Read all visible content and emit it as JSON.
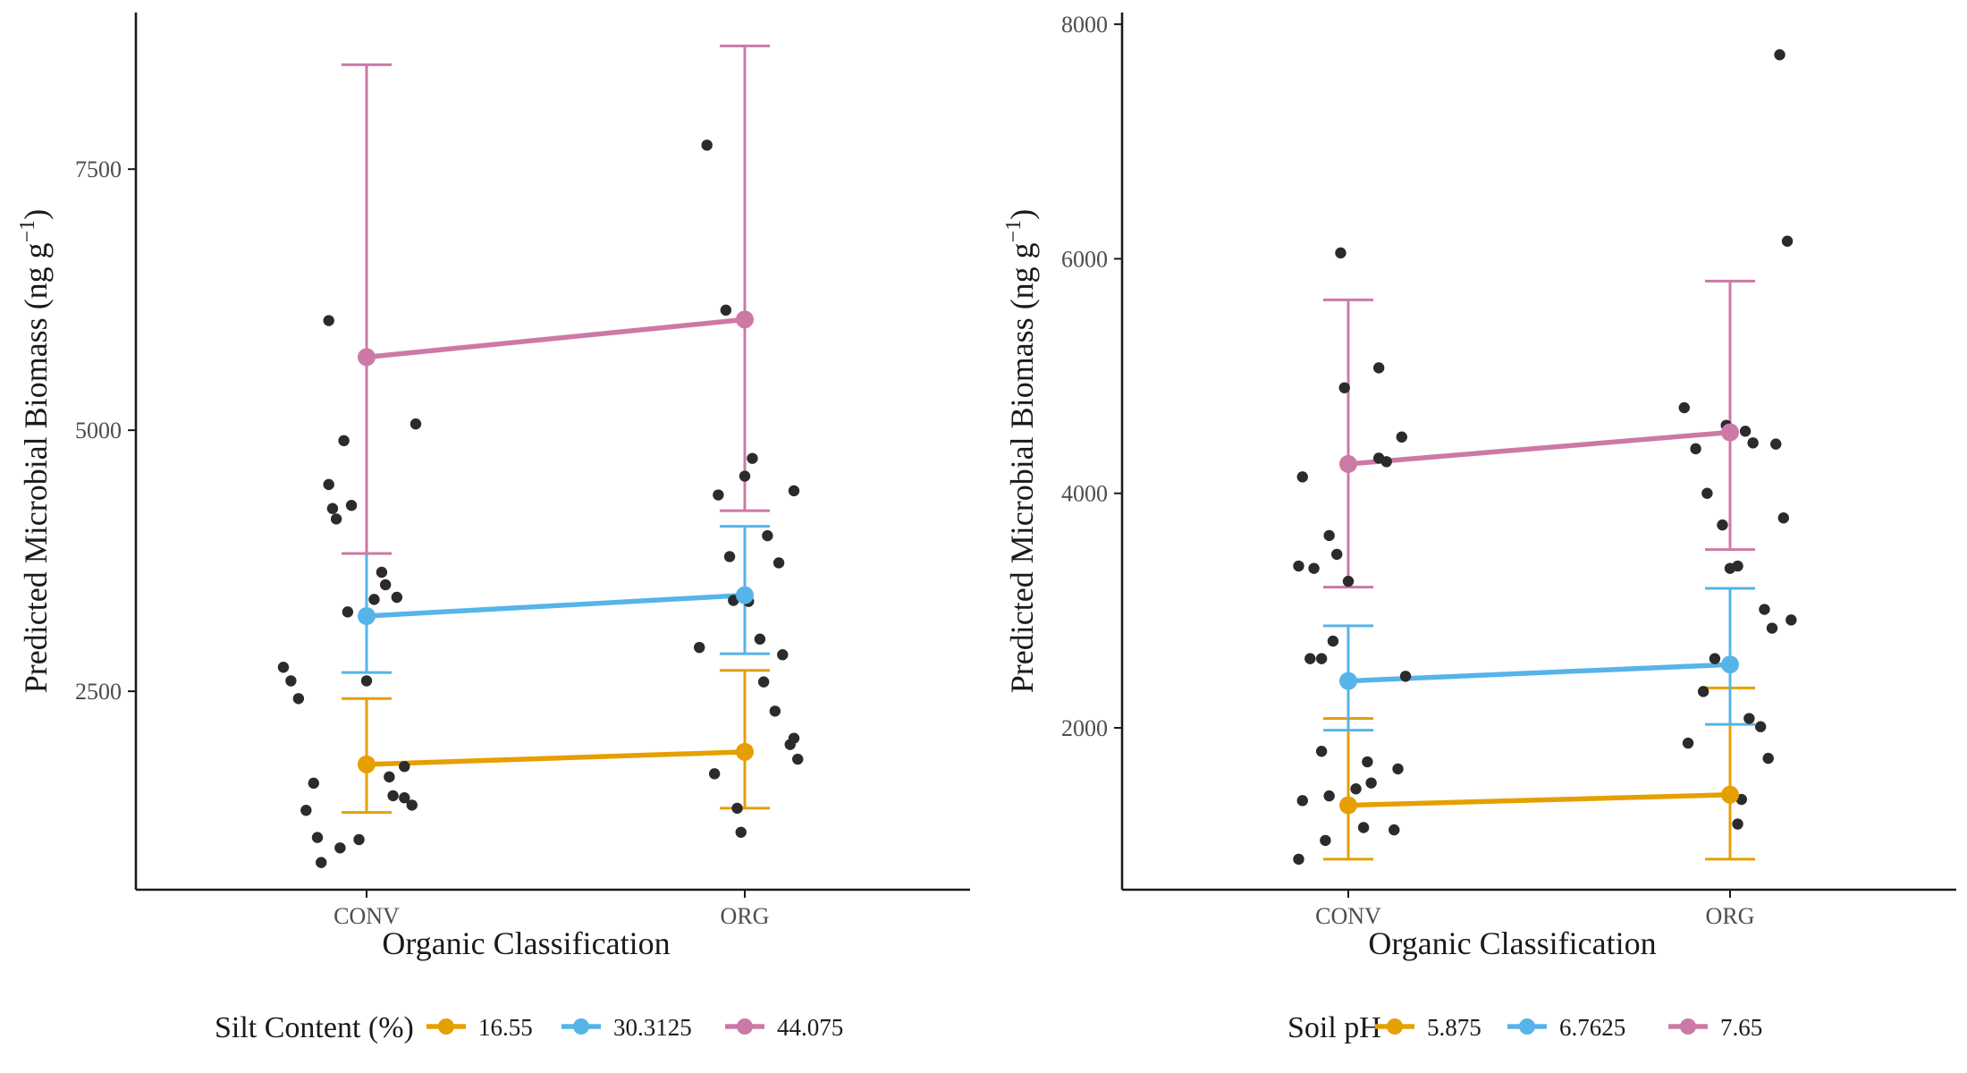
{
  "chart_data": [
    {
      "type": "line",
      "xlabel": "Organic Classification",
      "ylabel": "Predicted Microbial Biomass (ng g",
      "ylabel_sup": "−1",
      "ylabel_close": ")",
      "categories": [
        "CONV",
        "ORG"
      ],
      "ylim": [
        600,
        9000
      ],
      "yticks": [
        2500,
        5000,
        7500
      ],
      "legend_title": "Silt Content (%)",
      "legend_position": "bottom",
      "grid": false,
      "series": [
        {
          "name": "16.55",
          "color": "#E69F00",
          "values": [
            1800,
            1920
          ],
          "lower": [
            1340,
            1380
          ],
          "upper": [
            2430,
            2700
          ]
        },
        {
          "name": "30.3125",
          "color": "#56B4E9",
          "values": [
            3220,
            3420
          ],
          "lower": [
            2680,
            2860
          ],
          "upper": [
            3820,
            4080
          ]
        },
        {
          "name": "44.075",
          "color": "#CC79A7",
          "values": [
            5700,
            6060
          ],
          "lower": [
            3820,
            4230
          ],
          "upper": [
            8500,
            8680
          ]
        }
      ],
      "points": [
        {
          "x": 0.78,
          "y": 2730
        },
        {
          "x": 0.8,
          "y": 2600
        },
        {
          "x": 0.82,
          "y": 2430
        },
        {
          "x": 0.84,
          "y": 1360
        },
        {
          "x": 0.86,
          "y": 1620
        },
        {
          "x": 0.87,
          "y": 1100
        },
        {
          "x": 0.88,
          "y": 860
        },
        {
          "x": 0.9,
          "y": 4480
        },
        {
          "x": 0.9,
          "y": 6050
        },
        {
          "x": 0.91,
          "y": 4250
        },
        {
          "x": 0.92,
          "y": 4150
        },
        {
          "x": 0.93,
          "y": 1000
        },
        {
          "x": 0.94,
          "y": 4900
        },
        {
          "x": 0.95,
          "y": 3260
        },
        {
          "x": 0.96,
          "y": 4280
        },
        {
          "x": 0.98,
          "y": 1080
        },
        {
          "x": 1.0,
          "y": 2600
        },
        {
          "x": 1.02,
          "y": 3380
        },
        {
          "x": 1.04,
          "y": 3640
        },
        {
          "x": 1.05,
          "y": 3520
        },
        {
          "x": 1.06,
          "y": 1680
        },
        {
          "x": 1.07,
          "y": 1500
        },
        {
          "x": 1.08,
          "y": 3400
        },
        {
          "x": 1.1,
          "y": 1480
        },
        {
          "x": 1.1,
          "y": 1780
        },
        {
          "x": 1.12,
          "y": 1410
        },
        {
          "x": 1.13,
          "y": 5060
        },
        {
          "x": 1.88,
          "y": 2920
        },
        {
          "x": 1.9,
          "y": 7730
        },
        {
          "x": 1.92,
          "y": 1710
        },
        {
          "x": 1.93,
          "y": 4380
        },
        {
          "x": 1.95,
          "y": 6150
        },
        {
          "x": 1.96,
          "y": 3790
        },
        {
          "x": 1.97,
          "y": 3370
        },
        {
          "x": 1.98,
          "y": 1380
        },
        {
          "x": 1.99,
          "y": 1150
        },
        {
          "x": 2.0,
          "y": 4560
        },
        {
          "x": 2.01,
          "y": 3360
        },
        {
          "x": 2.02,
          "y": 4730
        },
        {
          "x": 2.04,
          "y": 3000
        },
        {
          "x": 2.05,
          "y": 2590
        },
        {
          "x": 2.06,
          "y": 3990
        },
        {
          "x": 2.08,
          "y": 2310
        },
        {
          "x": 2.09,
          "y": 3730
        },
        {
          "x": 2.1,
          "y": 2850
        },
        {
          "x": 2.12,
          "y": 1990
        },
        {
          "x": 2.13,
          "y": 2050
        },
        {
          "x": 2.13,
          "y": 4420
        },
        {
          "x": 2.14,
          "y": 1850
        }
      ]
    },
    {
      "type": "line",
      "xlabel": "Organic Classification",
      "ylabel": "Predicted Microbial Biomass (ng g",
      "ylabel_sup": "−1",
      "ylabel_close": ")",
      "categories": [
        "CONV",
        "ORG"
      ],
      "ylim": [
        620,
        8100
      ],
      "yticks": [
        2000,
        4000,
        6000,
        8000
      ],
      "legend_title": "Soil pH",
      "legend_position": "bottom",
      "grid": false,
      "series": [
        {
          "name": "5.875",
          "color": "#E69F00",
          "values": [
            1340,
            1430
          ],
          "lower": [
            880,
            880
          ],
          "upper": [
            2080,
            2340
          ]
        },
        {
          "name": "6.7625",
          "color": "#56B4E9",
          "values": [
            2400,
            2540
          ],
          "lower": [
            1980,
            2030
          ],
          "upper": [
            2870,
            3190
          ]
        },
        {
          "name": "7.65",
          "color": "#CC79A7",
          "values": [
            4250,
            4520
          ],
          "lower": [
            3200,
            3520
          ],
          "upper": [
            5650,
            5810
          ]
        }
      ],
      "points": [
        {
          "x": 0.87,
          "y": 880
        },
        {
          "x": 0.87,
          "y": 3380
        },
        {
          "x": 0.88,
          "y": 4140
        },
        {
          "x": 0.88,
          "y": 1380
        },
        {
          "x": 0.9,
          "y": 2590
        },
        {
          "x": 0.91,
          "y": 3360
        },
        {
          "x": 0.93,
          "y": 2590
        },
        {
          "x": 0.93,
          "y": 1800
        },
        {
          "x": 0.94,
          "y": 1040
        },
        {
          "x": 0.95,
          "y": 3640
        },
        {
          "x": 0.95,
          "y": 1420
        },
        {
          "x": 0.96,
          "y": 2740
        },
        {
          "x": 0.97,
          "y": 3480
        },
        {
          "x": 0.98,
          "y": 6050
        },
        {
          "x": 0.99,
          "y": 4900
        },
        {
          "x": 1.0,
          "y": 3250
        },
        {
          "x": 1.02,
          "y": 1480
        },
        {
          "x": 1.04,
          "y": 1150
        },
        {
          "x": 1.05,
          "y": 1710
        },
        {
          "x": 1.06,
          "y": 1530
        },
        {
          "x": 1.08,
          "y": 4300
        },
        {
          "x": 1.08,
          "y": 5070
        },
        {
          "x": 1.1,
          "y": 4270
        },
        {
          "x": 1.12,
          "y": 1130
        },
        {
          "x": 1.13,
          "y": 1650
        },
        {
          "x": 1.14,
          "y": 4480
        },
        {
          "x": 1.15,
          "y": 2440
        },
        {
          "x": 1.88,
          "y": 4730
        },
        {
          "x": 1.89,
          "y": 1870
        },
        {
          "x": 1.91,
          "y": 4380
        },
        {
          "x": 1.93,
          "y": 2310
        },
        {
          "x": 1.94,
          "y": 4000
        },
        {
          "x": 1.96,
          "y": 2590
        },
        {
          "x": 1.98,
          "y": 3730
        },
        {
          "x": 1.99,
          "y": 4580
        },
        {
          "x": 2.0,
          "y": 3360
        },
        {
          "x": 2.02,
          "y": 1180
        },
        {
          "x": 2.02,
          "y": 3380
        },
        {
          "x": 2.03,
          "y": 1390
        },
        {
          "x": 2.04,
          "y": 4530
        },
        {
          "x": 2.05,
          "y": 2080
        },
        {
          "x": 2.06,
          "y": 4430
        },
        {
          "x": 2.08,
          "y": 2010
        },
        {
          "x": 2.09,
          "y": 3010
        },
        {
          "x": 2.1,
          "y": 1740
        },
        {
          "x": 2.11,
          "y": 2850
        },
        {
          "x": 2.12,
          "y": 4420
        },
        {
          "x": 2.13,
          "y": 7740
        },
        {
          "x": 2.14,
          "y": 3790
        },
        {
          "x": 2.15,
          "y": 6150
        },
        {
          "x": 2.16,
          "y": 2920
        }
      ]
    }
  ]
}
